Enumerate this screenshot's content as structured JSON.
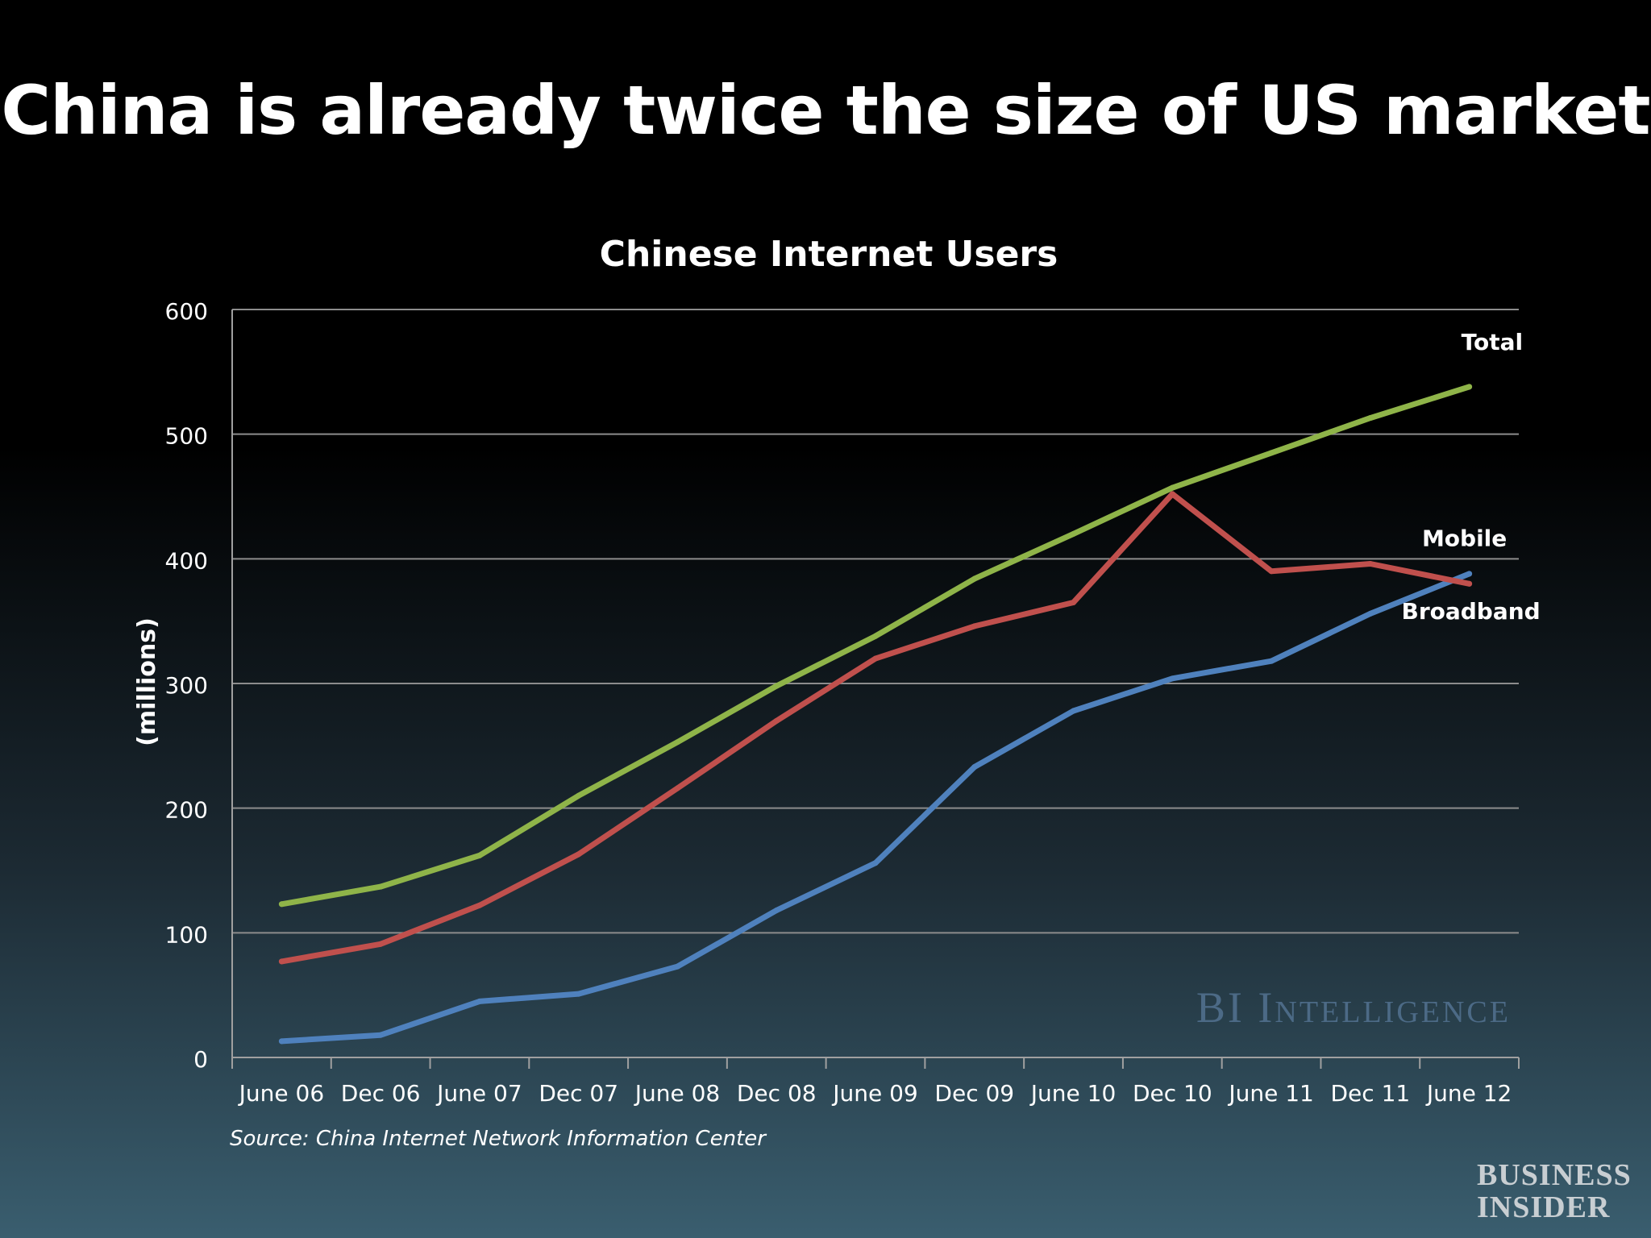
{
  "slide": {
    "title": "China is already twice the size of US market",
    "source": "Source: China Internet Network Information Center",
    "watermark": "BI Intelligence",
    "logo_line1": "BUSINESS",
    "logo_line2": "INSIDER"
  },
  "chart_data": {
    "type": "line",
    "title": "Chinese Internet Users",
    "ylabel": "(millions)",
    "xlabel": "",
    "ylim": [
      0,
      600
    ],
    "yticks": [
      0,
      100,
      200,
      300,
      400,
      500,
      600
    ],
    "grid": true,
    "categories": [
      "June 06",
      "Dec 06",
      "June 07",
      "Dec 07",
      "June 08",
      "Dec 08",
      "June 09",
      "Dec 09",
      "June 10",
      "Dec 10",
      "June 11",
      "Dec 11",
      "June 12"
    ],
    "series": [
      {
        "name": "Total",
        "color": "#8fb449",
        "values": [
          123,
          137,
          162,
          210,
          253,
          298,
          338,
          384,
          420,
          457,
          485,
          513,
          538
        ]
      },
      {
        "name": "Mobile",
        "color": "#c0504d",
        "values": [
          77,
          91,
          122,
          163,
          216,
          270,
          320,
          346,
          365,
          452,
          390,
          396,
          380
        ]
      },
      {
        "name": "Broadband",
        "color": "#4f81bd",
        "values": [
          13,
          18,
          45,
          51,
          73,
          118,
          156,
          233,
          278,
          304,
          318,
          356,
          388
        ]
      }
    ]
  }
}
